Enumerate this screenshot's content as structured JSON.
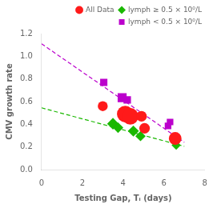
{
  "chart_data": {
    "type": "scatter",
    "xlabel": "Testing Gap, Tᵢ (days)",
    "ylabel": "CMV growth rate",
    "xlim": [
      0,
      8
    ],
    "ylim": [
      0,
      1.2
    ],
    "xticks": [
      0,
      2,
      4,
      6,
      8
    ],
    "yticks": [
      {
        "value": 0,
        "label": "0.0"
      },
      0.2,
      0.4,
      0.6,
      0.8,
      {
        "value": 1.0,
        "label": "1.0"
      },
      1.2
    ],
    "grid": false,
    "legend": "upper right",
    "series": [
      {
        "type": "line",
        "line_style": "dashed",
        "color": "#bb00cc",
        "x": [
          0.0,
          7.0
        ],
        "values": [
          1.11,
          0.24
        ]
      },
      {
        "type": "line",
        "line_style": "dashed",
        "color": "#1ab800",
        "x": [
          0.0,
          7.0
        ],
        "values": [
          0.545,
          0.205
        ]
      },
      {
        "name": "All Data",
        "type": "scatter",
        "marker": "circle",
        "color": "#ff1a1a",
        "x": [
          3.0,
          4.1,
          4.35,
          4.9,
          5.05,
          6.55
        ],
        "values": [
          0.56,
          0.49,
          0.47,
          0.47,
          0.365,
          0.275
        ],
        "sizes": [
          80,
          220,
          220,
          90,
          90,
          130
        ]
      },
      {
        "name": "lymph ≥ 0.5 × 10⁰/L",
        "type": "scatter",
        "marker": "diamond",
        "color": "#1ab800",
        "x": [
          3.5,
          3.75,
          4.5,
          4.85,
          6.6
        ],
        "values": [
          0.405,
          0.37,
          0.34,
          0.295,
          0.215
        ],
        "sizes": [
          110,
          90,
          100,
          85,
          70
        ]
      },
      {
        "name": "lymph < 0.5 × 10⁰/L",
        "type": "scatter",
        "marker": "square",
        "color": "#bb00cc",
        "x": [
          3.05,
          3.95,
          4.2,
          4.9,
          6.2,
          6.3
        ],
        "values": [
          0.77,
          0.635,
          0.615,
          0.475,
          0.385,
          0.42
        ],
        "sizes": [
          85,
          130,
          90,
          85,
          70,
          70
        ]
      }
    ]
  }
}
